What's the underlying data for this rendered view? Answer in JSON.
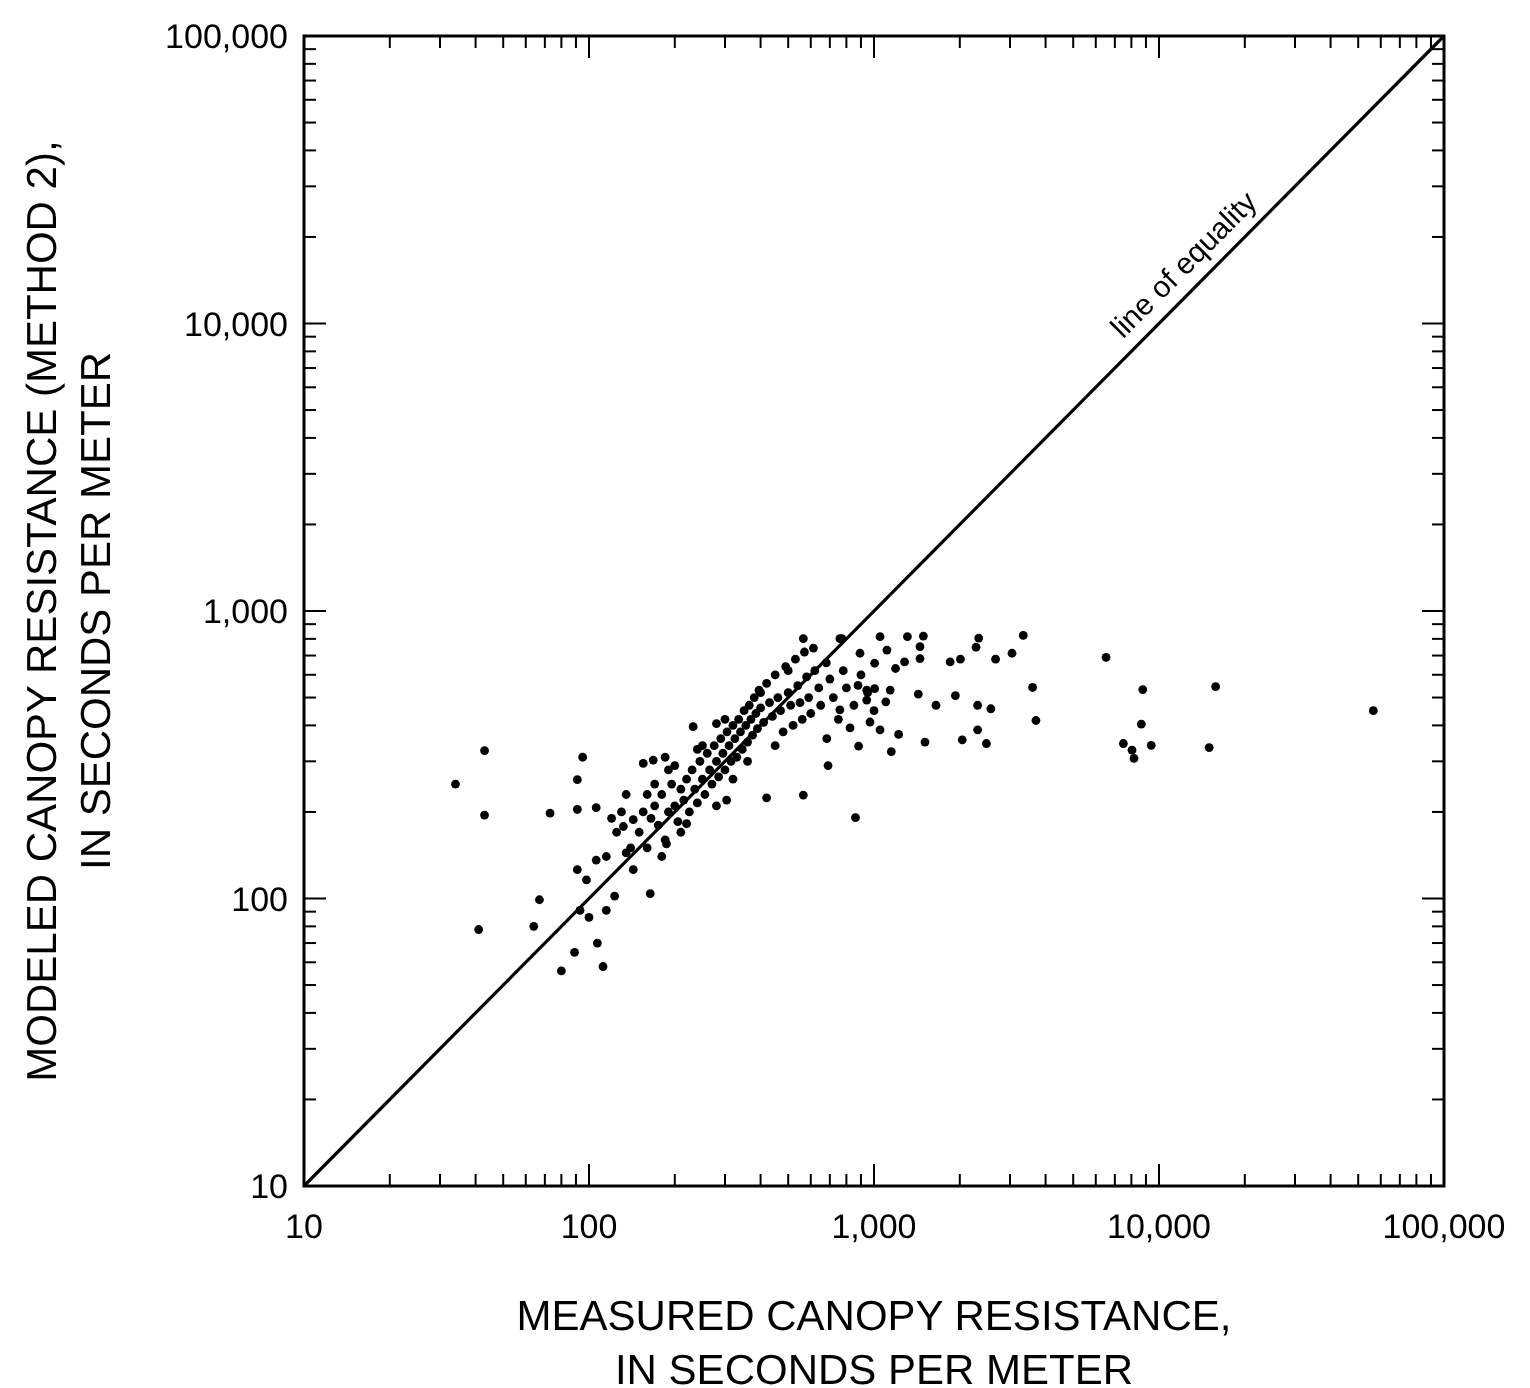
{
  "chart_data": {
    "type": "scatter",
    "xlabel": "MEASURED CANOPY RESISTANCE,\nIN SECONDS PER METER",
    "ylabel": "MODELED CANOPY RESISTANCE (METHOD 2),\nIN SECONDS PER METER",
    "log": "xy",
    "grid": false,
    "marker": "circle",
    "xlim": [
      10,
      100000
    ],
    "ylim": [
      10,
      100000
    ],
    "xticks": [
      10,
      {
        "value": 20,
        "label": null
      },
      {
        "value": 30,
        "label": null
      },
      {
        "value": 40,
        "label": null
      },
      {
        "value": 50,
        "label": null
      },
      {
        "value": 60,
        "label": null
      },
      {
        "value": 70,
        "label": null
      },
      {
        "value": 80,
        "label": null
      },
      {
        "value": 90,
        "label": null
      },
      100,
      {
        "value": 200,
        "label": null
      },
      {
        "value": 300,
        "label": null
      },
      {
        "value": 400,
        "label": null
      },
      {
        "value": 500,
        "label": null
      },
      {
        "value": 600,
        "label": null
      },
      {
        "value": 700,
        "label": null
      },
      {
        "value": 800,
        "label": null
      },
      {
        "value": 900,
        "label": null
      },
      {
        "value": 1000,
        "label": "1,000"
      },
      {
        "value": 2000,
        "label": null
      },
      {
        "value": 3000,
        "label": null
      },
      {
        "value": 4000,
        "label": null
      },
      {
        "value": 5000,
        "label": null
      },
      {
        "value": 6000,
        "label": null
      },
      {
        "value": 7000,
        "label": null
      },
      {
        "value": 8000,
        "label": null
      },
      {
        "value": 9000,
        "label": null
      },
      {
        "value": 10000,
        "label": "10,000"
      },
      {
        "value": 20000,
        "label": null
      },
      {
        "value": 30000,
        "label": null
      },
      {
        "value": 40000,
        "label": null
      },
      {
        "value": 50000,
        "label": null
      },
      {
        "value": 60000,
        "label": null
      },
      {
        "value": 70000,
        "label": null
      },
      {
        "value": 80000,
        "label": null
      },
      {
        "value": 90000,
        "label": null
      },
      {
        "value": 100000,
        "label": "100,000"
      }
    ],
    "yticks": [
      10,
      {
        "value": 20,
        "label": null
      },
      {
        "value": 30,
        "label": null
      },
      {
        "value": 40,
        "label": null
      },
      {
        "value": 50,
        "label": null
      },
      {
        "value": 60,
        "label": null
      },
      {
        "value": 70,
        "label": null
      },
      {
        "value": 80,
        "label": null
      },
      {
        "value": 90,
        "label": null
      },
      100,
      {
        "value": 200,
        "label": null
      },
      {
        "value": 300,
        "label": null
      },
      {
        "value": 400,
        "label": null
      },
      {
        "value": 500,
        "label": null
      },
      {
        "value": 600,
        "label": null
      },
      {
        "value": 700,
        "label": null
      },
      {
        "value": 800,
        "label": null
      },
      {
        "value": 900,
        "label": null
      },
      {
        "value": 1000,
        "label": "1,000"
      },
      {
        "value": 2000,
        "label": null
      },
      {
        "value": 3000,
        "label": null
      },
      {
        "value": 4000,
        "label": null
      },
      {
        "value": 5000,
        "label": null
      },
      {
        "value": 6000,
        "label": null
      },
      {
        "value": 7000,
        "label": null
      },
      {
        "value": 8000,
        "label": null
      },
      {
        "value": 9000,
        "label": null
      },
      {
        "value": 10000,
        "label": "10,000"
      },
      {
        "value": 20000,
        "label": null
      },
      {
        "value": 30000,
        "label": null
      },
      {
        "value": 40000,
        "label": null
      },
      {
        "value": 50000,
        "label": null
      },
      {
        "value": 60000,
        "label": null
      },
      {
        "value": 70000,
        "label": null
      },
      {
        "value": 80000,
        "label": null
      },
      {
        "value": 90000,
        "label": null
      },
      {
        "value": 100000,
        "label": "100,000"
      }
    ],
    "annotations": [
      {
        "text": "line of equality",
        "x": 14000,
        "y": 14000
      }
    ],
    "series": [
      {
        "color": "#000000",
        "x": [
          34,
          43,
          43,
          41,
          67,
          64,
          73,
          91,
          95,
          91,
          106,
          80,
          89,
          112,
          107,
          100,
          115,
          123,
          93,
          91,
          98,
          106,
          115,
          164,
          143,
          135,
          132,
          143,
          155,
          168,
          185,
          187,
          232,
          280,
          565,
          613,
          759,
          420,
          304,
          220,
          6520,
          8770,
          8670,
          7500,
          8040,
          8170,
          9390,
          15000,
          15800,
          56500,
          3600,
          3700,
          3340,
          3050,
          2670,
          2330,
          2280,
          2570,
          2480,
          2310,
          2310,
          2040,
          2010,
          1850,
          1930,
          1650,
          1510,
          1450,
          1430,
          1490,
          1310,
          1450,
          1280,
          1220,
          1150,
          1110,
          1050,
          1050,
          1190,
          1100,
          1140,
          968,
          883,
          861,
          893,
          943,
          943,
          1005,
          1005,
          824,
          759,
          772,
          690,
          683,
          565,
          879,
          150,
          155,
          160,
          165,
          170,
          175,
          180,
          185,
          190,
          195,
          200,
          205,
          210,
          215,
          220,
          225,
          230,
          235,
          240,
          245,
          250,
          255,
          260,
          265,
          270,
          275,
          280,
          285,
          290,
          295,
          300,
          305,
          310,
          315,
          320,
          325,
          330,
          335,
          340,
          345,
          350,
          355,
          360,
          365,
          370,
          375,
          380,
          385,
          390,
          395,
          400,
          410,
          420,
          430,
          440,
          450,
          460,
          470,
          480,
          490,
          500,
          510,
          520,
          530,
          540,
          550,
          560,
          570,
          580,
          590,
          600,
          620,
          640,
          650,
          680,
          700,
          720,
          750,
          780,
          800,
          850,
          900,
          950,
          1000,
          160,
          190,
          210,
          240,
          280,
          320,
          360,
          400,
          450,
          500,
          300,
          250,
          200,
          180,
          170,
          130,
          140,
          120,
          125,
          135
        ],
        "values": [
          250,
          327,
          195,
          78,
          99,
          80,
          198,
          259,
          310,
          204,
          207,
          56,
          65,
          58,
          70,
          86,
          91,
          102,
          91,
          126,
          116,
          136,
          140,
          104,
          126,
          144,
          178,
          188,
          295,
          303,
          310,
          155,
          396,
          406,
          802,
          743,
          802,
          224,
          220,
          182,
          690,
          533,
          404,
          346,
          328,
          307,
          341,
          335,
          546,
          450,
          542,
          416,
          822,
          713,
          680,
          805,
          748,
          457,
          346,
          470,
          386,
          356,
          680,
          665,
          508,
          470,
          350,
          683,
          514,
          818,
          815,
          752,
          665,
          372,
          324,
          731,
          815,
          386,
          631,
          483,
          531,
          411,
          339,
          191,
          713,
          531,
          490,
          537,
          658,
          392,
          453,
          802,
          290,
          360,
          229,
          551,
          170,
          200,
          150,
          190,
          210,
          180,
          230,
          160,
          200,
          250,
          210,
          185,
          240,
          220,
          260,
          200,
          280,
          240,
          215,
          300,
          260,
          230,
          320,
          280,
          250,
          340,
          300,
          265,
          360,
          320,
          280,
          380,
          340,
          300,
          400,
          360,
          310,
          420,
          380,
          330,
          450,
          400,
          350,
          470,
          420,
          370,
          500,
          440,
          390,
          530,
          460,
          410,
          560,
          480,
          430,
          600,
          500,
          450,
          380,
          640,
          520,
          470,
          400,
          680,
          550,
          480,
          420,
          720,
          590,
          500,
          440,
          620,
          540,
          470,
          660,
          580,
          500,
          420,
          620,
          540,
          470,
          600,
          520,
          450,
          230,
          280,
          170,
          330,
          210,
          260,
          300,
          520,
          340,
          620,
          420,
          340,
          290,
          140,
          250,
          200,
          150,
          190,
          170,
          230
        ]
      },
      {
        "type": "line",
        "marker": "none",
        "color": "#000000",
        "x": [
          10,
          100000
        ],
        "values": [
          10,
          100000
        ]
      }
    ]
  }
}
